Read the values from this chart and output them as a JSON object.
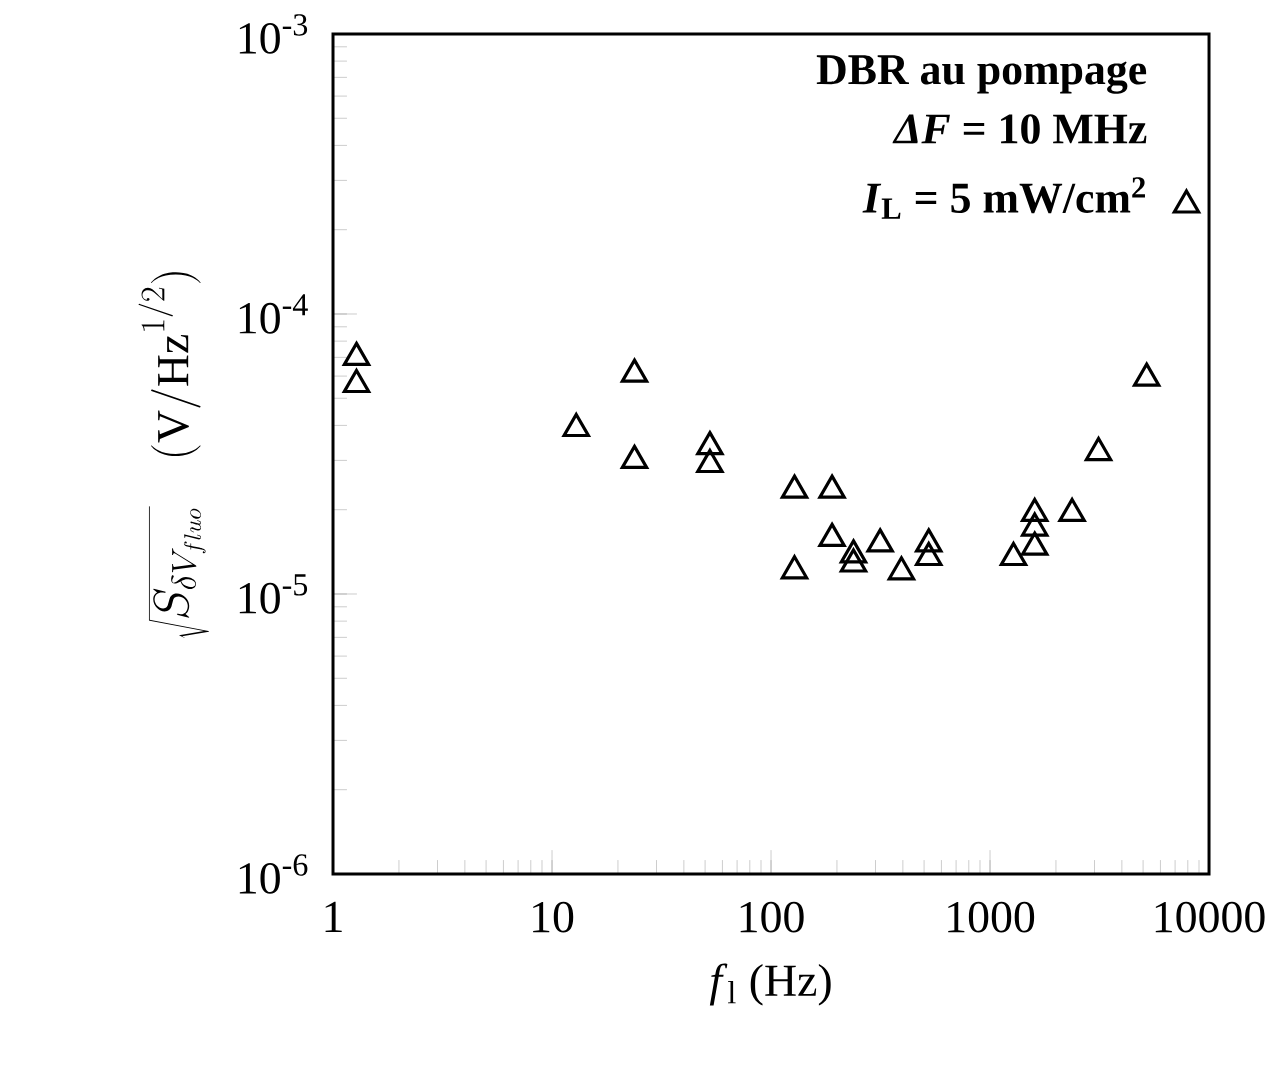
{
  "chart_data": {
    "type": "scatter",
    "xlabel": "*f*$_{l}$ (Hz)",
    "ylabel": "\\sqrt{S_{\\delta V_{fluo}}}\\quad(\\mathrm{V/Hz}^{1/2})",
    "annotations": [
      "DBR au pompage",
      "*ΔF* = 10 MHz",
      "*I*$_{L}$ = 5 mW/cm$^{2}$"
    ],
    "log": "xy",
    "grid": false,
    "marker": "triangle",
    "xlim": [
      1,
      10000
    ],
    "ylim": [
      1e-06,
      0.001
    ],
    "xticks": [
      1,
      10,
      100,
      1000,
      10000
    ],
    "yticks": [
      {
        "value": 1e-06,
        "label": "10$^{-6}$"
      },
      {
        "value": 1e-05,
        "label": "10$^{-5}$"
      },
      {
        "value": 0.0001,
        "label": "10$^{-4}$"
      },
      {
        "value": 0.001,
        "label": "10$^{-3}$"
      }
    ],
    "series": [
      {
        "color": "#000000",
        "x": [
          1.28,
          1.28,
          12.9,
          23.8,
          23.8,
          52.6,
          52.6,
          128,
          128,
          190,
          190,
          238,
          238,
          315,
          394,
          525,
          525,
          1280,
          1600,
          1600,
          1600,
          2370,
          3130,
          5190,
          7890
        ],
        "values": [
          7e-05,
          5.6e-05,
          3.9e-05,
          6.1e-05,
          3e-05,
          3.36e-05,
          2.9e-05,
          2.35e-05,
          1.21e-05,
          2.35e-05,
          1.58e-05,
          1.38e-05,
          1.28e-05,
          1.51e-05,
          1.2e-05,
          1.51e-05,
          1.35e-05,
          1.35e-05,
          1.94e-05,
          1.72e-05,
          1.47e-05,
          1.94e-05,
          3.2e-05,
          5.9e-05,
          0.000245
        ]
      }
    ]
  }
}
